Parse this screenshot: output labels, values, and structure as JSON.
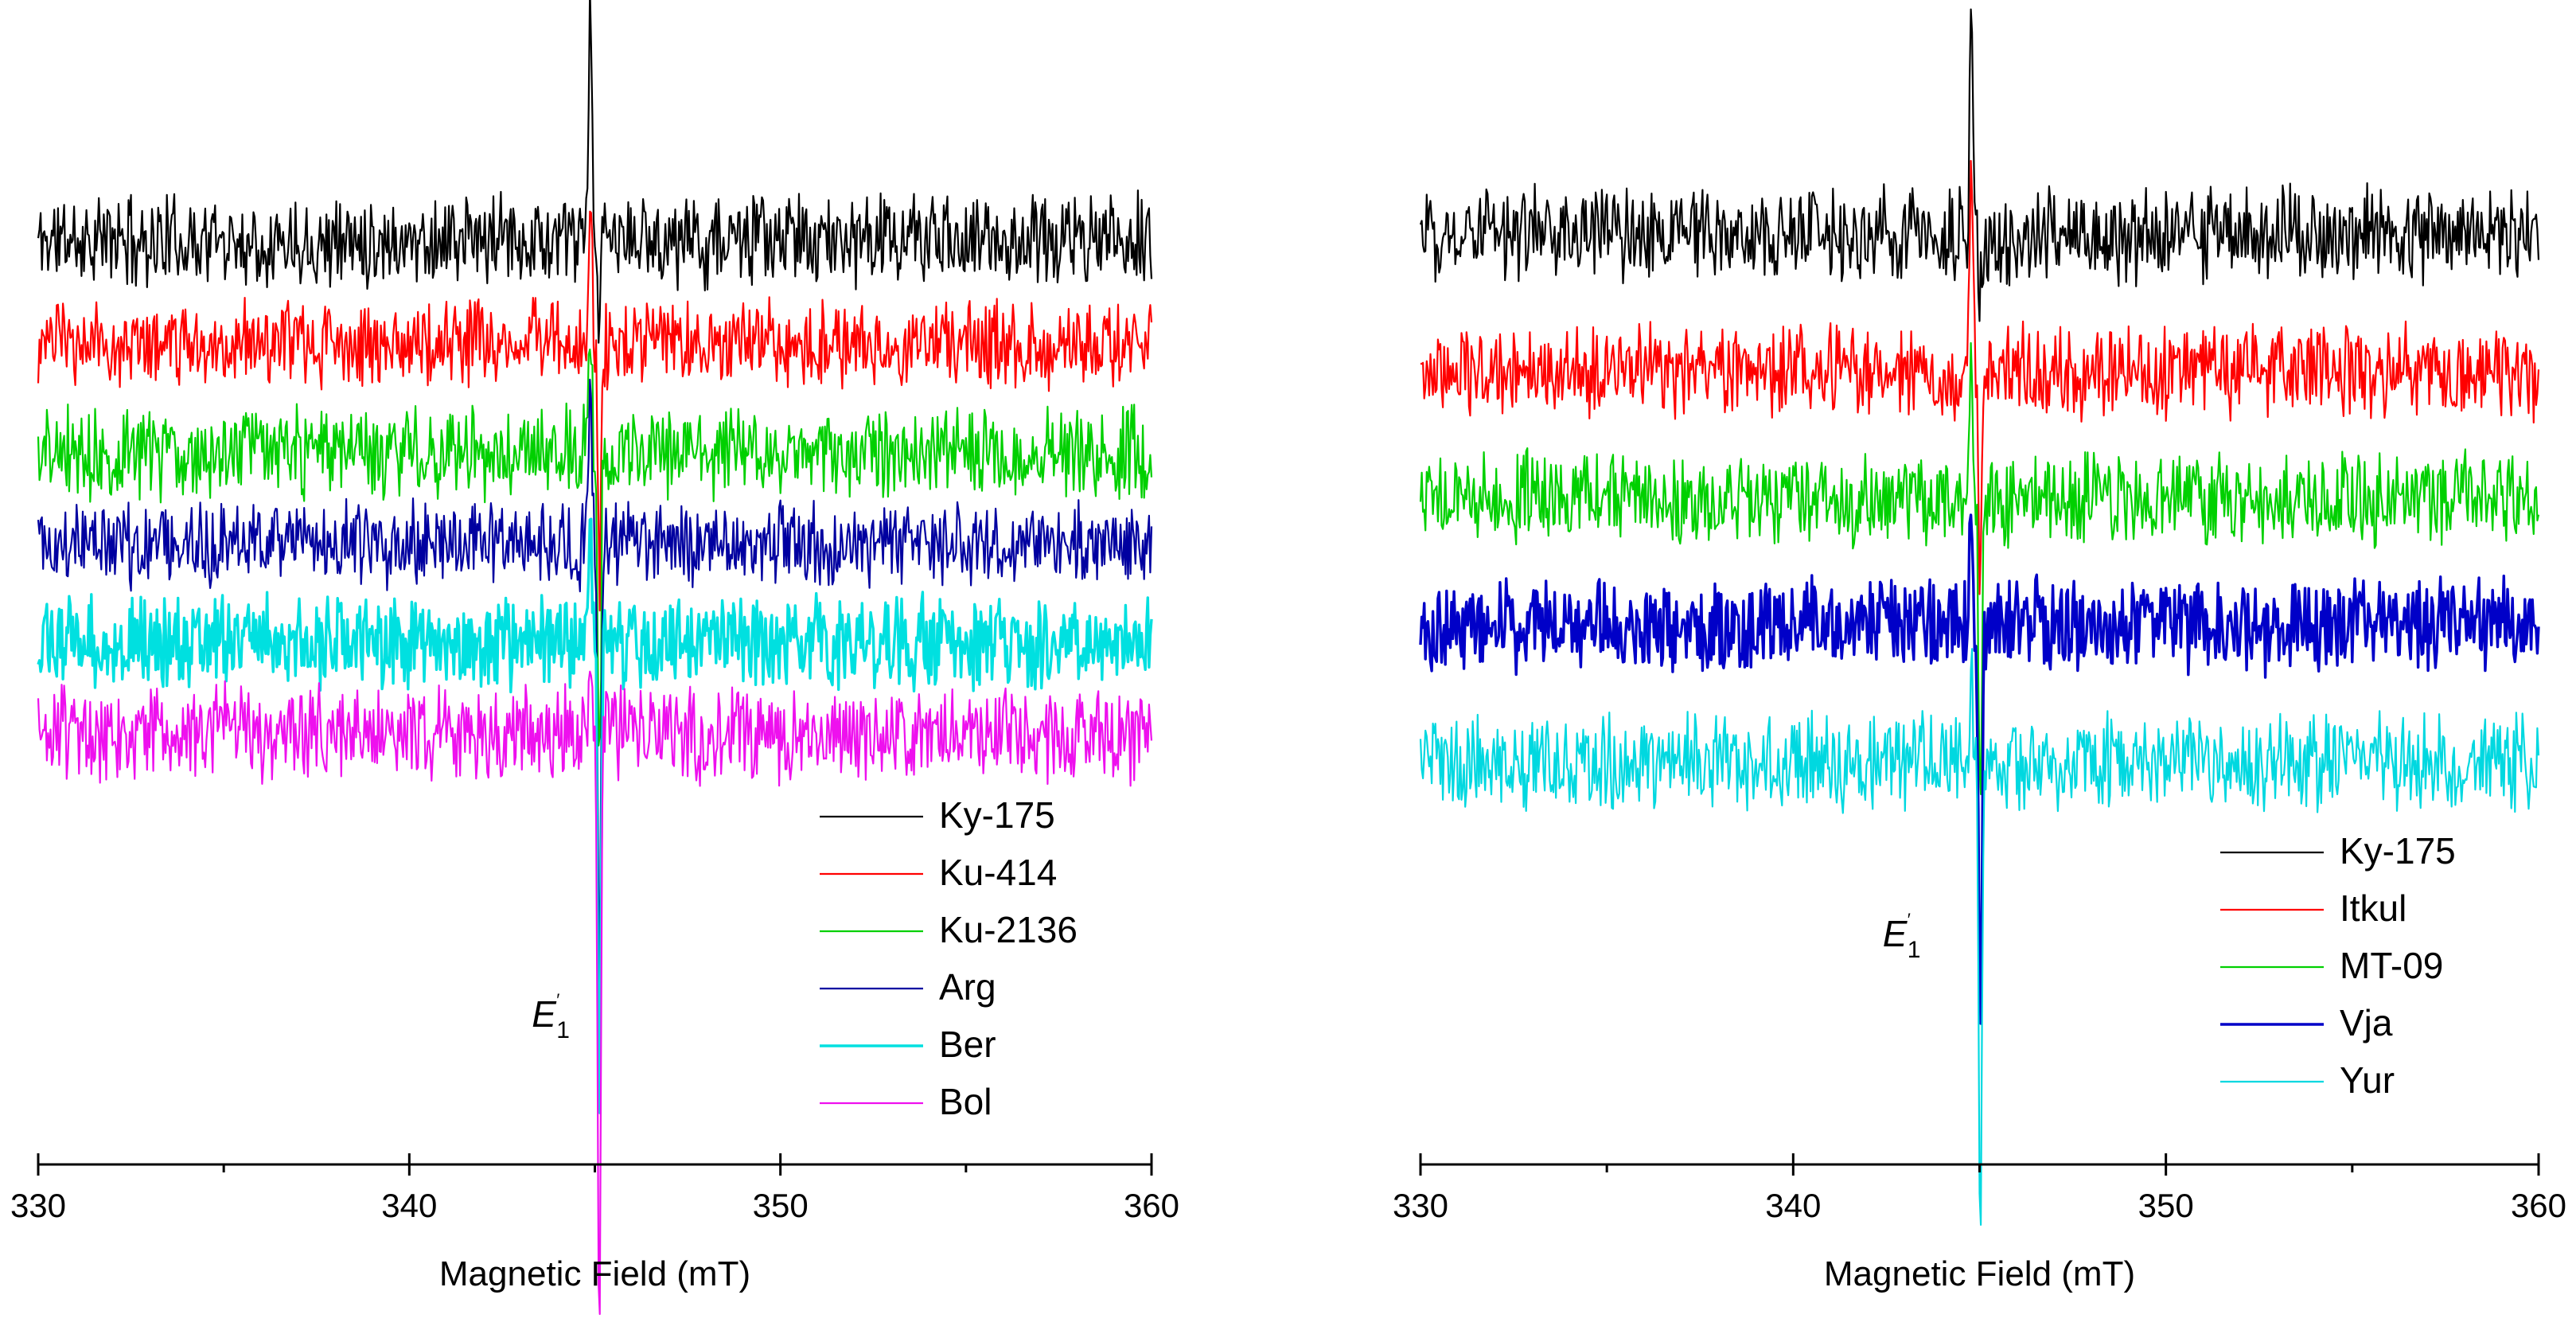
{
  "chart_data": [
    {
      "type": "line",
      "panel": "left",
      "xlabel": "Magnetic Field (mT)",
      "ylabel": "",
      "xlim": [
        330,
        360
      ],
      "ylim": [
        0,
        100
      ],
      "xticks": [
        330,
        340,
        350,
        360
      ],
      "xtick_labels": [
        "330",
        "340",
        "350",
        "360"
      ],
      "minor_xticks": [
        335,
        345,
        355
      ],
      "annotation": {
        "text": "E",
        "prime": "′",
        "subscript": "1",
        "x": 343.3,
        "y": 12
      },
      "legend_position": "lower-right",
      "resonance_center_x": 345.0,
      "series": [
        {
          "name": "Ky-175",
          "color": "#000000",
          "baseline": 80.5,
          "noise": 3.2,
          "peak_up": 19,
          "peak_down": 6,
          "stroke": 2.2,
          "seed": 11
        },
        {
          "name": "Ku-414",
          "color": "#ff0000",
          "baseline": 71.5,
          "noise": 3.0,
          "peak_up": 14,
          "peak_down": 22,
          "stroke": 2.2,
          "seed": 23
        },
        {
          "name": "Ku-2136",
          "color": "#00d000",
          "baseline": 62.0,
          "noise": 3.2,
          "peak_up": 12,
          "peak_down": 30,
          "stroke": 2.2,
          "seed": 37
        },
        {
          "name": "Arg",
          "color": "#0000a0",
          "baseline": 54.0,
          "noise": 3.0,
          "peak_up": 12,
          "peak_down": 36,
          "stroke": 2.2,
          "seed": 41
        },
        {
          "name": "Ber",
          "color": "#00e0e0",
          "baseline": 45.5,
          "noise": 3.2,
          "peak_up": 10,
          "peak_down": 42,
          "stroke": 3.4,
          "seed": 53
        },
        {
          "name": "Bol",
          "color": "#ee10ee",
          "baseline": 37.5,
          "noise": 3.4,
          "peak_up": 8,
          "peak_down": 52,
          "stroke": 2.2,
          "seed": 67
        }
      ]
    },
    {
      "type": "line",
      "panel": "right",
      "xlabel": "Magnetic Field (mT)",
      "ylabel": "",
      "xlim": [
        330,
        360
      ],
      "ylim": [
        0,
        100
      ],
      "xticks": [
        330,
        340,
        350,
        360
      ],
      "xtick_labels": [
        "330",
        "340",
        "350",
        "360"
      ],
      "minor_xticks": [
        335,
        345,
        355
      ],
      "annotation": {
        "text": "E",
        "prime": "′",
        "subscript": "1",
        "x": 342.4,
        "y": 19
      },
      "legend_position": "lower-right",
      "resonance_center_x": 344.9,
      "series": [
        {
          "name": "Ky-175",
          "color": "#000000",
          "baseline": 81.0,
          "noise": 3.3,
          "peak_up": 20,
          "peak_down": 6,
          "stroke": 2.2,
          "seed": 71
        },
        {
          "name": "Itkul",
          "color": "#ff0000",
          "baseline": 69.0,
          "noise": 3.3,
          "peak_up": 19,
          "peak_down": 18,
          "stroke": 2.2,
          "seed": 83
        },
        {
          "name": "MT-09",
          "color": "#00d000",
          "baseline": 58.0,
          "noise": 3.2,
          "peak_up": 10,
          "peak_down": 28,
          "stroke": 2.2,
          "seed": 97
        },
        {
          "name": "Vja",
          "color": "#0000c8",
          "baseline": 47.0,
          "noise": 3.4,
          "peak_up": 10,
          "peak_down": 36,
          "stroke": 3.4,
          "seed": 101
        },
        {
          "name": "Yur",
          "color": "#00d8e0",
          "baseline": 35.0,
          "noise": 3.4,
          "peak_up": 8,
          "peak_down": 42,
          "stroke": 2.2,
          "seed": 113
        }
      ]
    }
  ]
}
